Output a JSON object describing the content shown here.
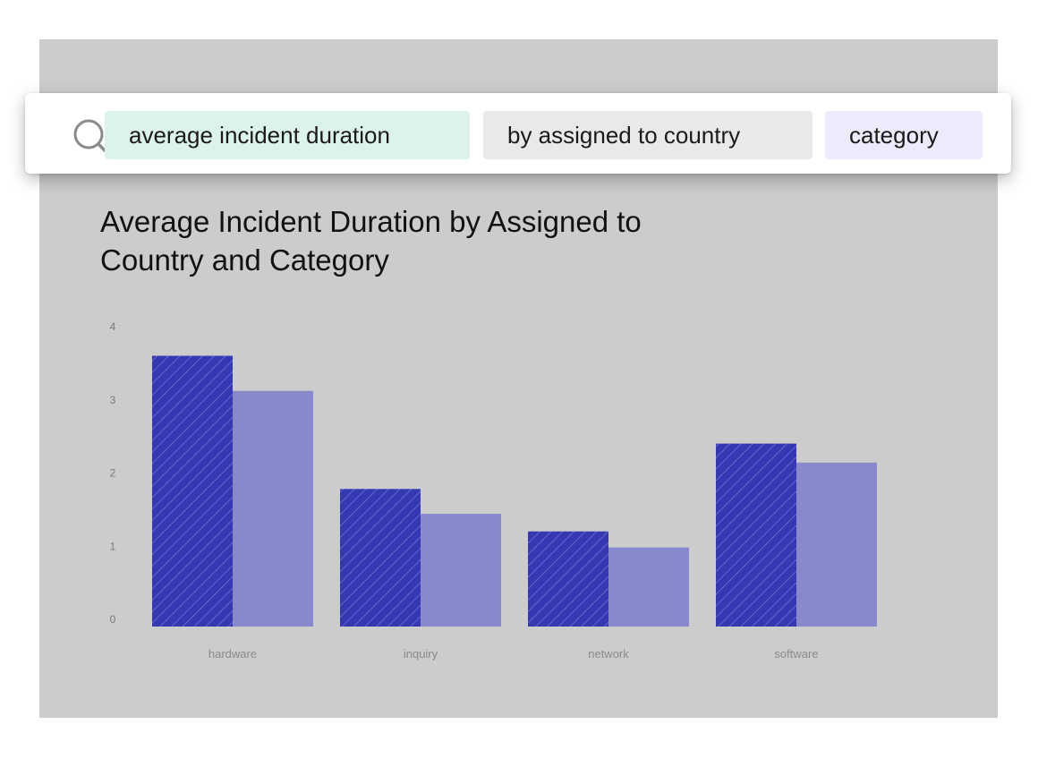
{
  "search": {
    "chips": {
      "measure": "average incident duration",
      "attribute": "by assigned to country",
      "category": "category"
    }
  },
  "colors": {
    "series_dark": "#3538b2",
    "series_light": "#8889cc",
    "chip_measure": "#dcf2ec",
    "chip_attribute": "#e9e9e9",
    "chip_category": "#ebebfb",
    "panel": "#cccccc"
  },
  "icons": {
    "search": "search-icon"
  },
  "chart_data": {
    "type": "bar",
    "title": "Average Incident Duration by Assigned to Country and Category",
    "xlabel": "",
    "ylabel": "",
    "categories": [
      "hardware",
      "inquiry",
      "network",
      "software"
    ],
    "series": [
      {
        "values": [
          3.7,
          1.88,
          1.3,
          2.5
        ],
        "pattern": "hatched",
        "color": "#3538b2"
      },
      {
        "values": [
          3.22,
          1.54,
          1.08,
          2.24
        ],
        "pattern": "solid",
        "color": "#8889cc"
      }
    ],
    "ylim": [
      0,
      4
    ],
    "yticks": [
      0,
      1,
      2,
      3,
      4
    ],
    "grid": false,
    "legend": "none"
  }
}
